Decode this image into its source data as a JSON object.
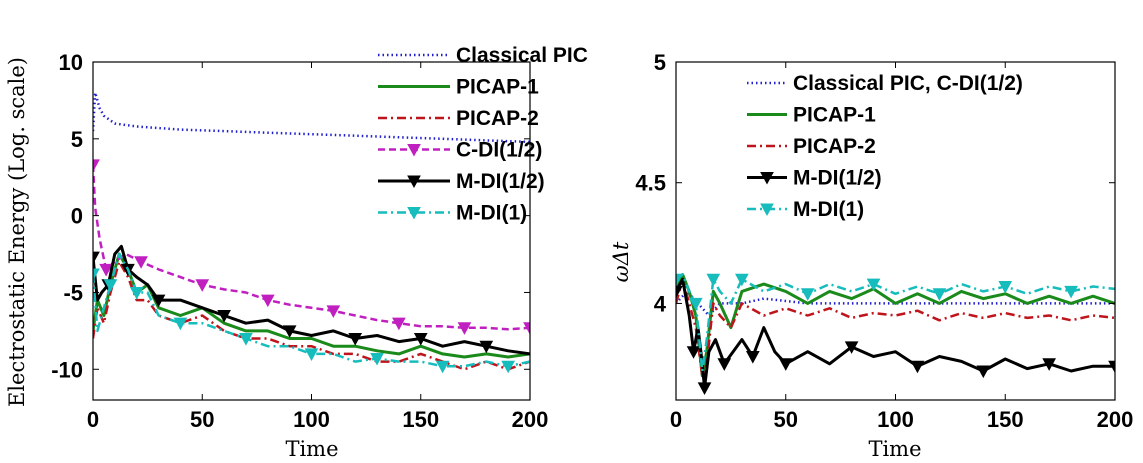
{
  "chart_data": [
    {
      "type": "line",
      "xlabel": "Time",
      "ylabel": "Electrostatic Energy (Log. scale)",
      "xlim": [
        0,
        200
      ],
      "ylim": [
        -12,
        10
      ],
      "xticks": [
        0,
        50,
        100,
        150,
        200
      ],
      "yticks": [
        10,
        5,
        0,
        -5,
        -10
      ],
      "legend_position": "top-right",
      "series": [
        {
          "name": "Classical PIC",
          "color": "#1f1fd0",
          "style": "dotted",
          "marker": "",
          "x": [
            0,
            1,
            3,
            5,
            10,
            20,
            40,
            60,
            80,
            100,
            120,
            140,
            160,
            180,
            200
          ],
          "y": [
            5.5,
            8.0,
            7.0,
            6.5,
            6.0,
            5.8,
            5.6,
            5.5,
            5.4,
            5.3,
            5.2,
            5.1,
            5.0,
            4.9,
            4.8
          ]
        },
        {
          "name": "PICAP-1",
          "color": "#1a8a1a",
          "style": "solid",
          "marker": "",
          "x": [
            0,
            2,
            5,
            8,
            12,
            16,
            20,
            25,
            30,
            40,
            50,
            60,
            70,
            80,
            90,
            100,
            110,
            120,
            130,
            140,
            150,
            160,
            170,
            180,
            190,
            200
          ],
          "y": [
            -7.5,
            -5.5,
            -6.5,
            -4.5,
            -2.5,
            -3.5,
            -5.0,
            -4.5,
            -6.0,
            -6.5,
            -6.0,
            -7.0,
            -7.5,
            -7.5,
            -8.0,
            -8.0,
            -8.5,
            -8.5,
            -8.8,
            -9.0,
            -8.5,
            -9.0,
            -9.2,
            -9.0,
            -9.2,
            -9.0
          ]
        },
        {
          "name": "PICAP-2",
          "color": "#c0141c",
          "style": "dashdot",
          "marker": "",
          "x": [
            0,
            2,
            5,
            8,
            12,
            16,
            20,
            25,
            30,
            40,
            50,
            60,
            70,
            80,
            90,
            100,
            110,
            120,
            130,
            140,
            150,
            160,
            170,
            180,
            190,
            200
          ],
          "y": [
            -8.0,
            -6.0,
            -7.0,
            -5.0,
            -3.0,
            -4.0,
            -5.5,
            -5.5,
            -6.5,
            -7.0,
            -6.5,
            -7.5,
            -8.0,
            -8.0,
            -8.5,
            -8.5,
            -9.0,
            -9.0,
            -9.5,
            -9.5,
            -9.0,
            -9.5,
            -10.0,
            -9.5,
            -10.0,
            -9.5
          ]
        },
        {
          "name": "C-DI(1/2)",
          "color": "#c020c0",
          "style": "dashed",
          "marker": "triangle-down",
          "x": [
            0,
            1,
            3,
            6,
            10,
            15,
            22,
            30,
            40,
            50,
            60,
            70,
            80,
            90,
            100,
            110,
            120,
            130,
            140,
            150,
            160,
            170,
            180,
            190,
            200
          ],
          "y": [
            3.3,
            0.5,
            -1.5,
            -3.5,
            -3.0,
            -2.5,
            -3.0,
            -3.5,
            -4.0,
            -4.5,
            -4.8,
            -5.0,
            -5.5,
            -5.8,
            -6.0,
            -6.2,
            -6.5,
            -6.8,
            -7.0,
            -7.2,
            -7.2,
            -7.3,
            -7.3,
            -7.4,
            -7.3
          ]
        },
        {
          "name": "M-DI(1/2)",
          "color": "#000000",
          "style": "solid",
          "marker": "triangle-down",
          "x": [
            0,
            2,
            4,
            7,
            10,
            13,
            16,
            20,
            25,
            30,
            40,
            50,
            60,
            70,
            80,
            90,
            100,
            110,
            120,
            130,
            140,
            150,
            160,
            170,
            180,
            190,
            200
          ],
          "y": [
            -2.7,
            -5.5,
            -5.0,
            -4.5,
            -2.5,
            -2.0,
            -3.5,
            -4.0,
            -4.5,
            -5.5,
            -5.5,
            -6.0,
            -6.5,
            -7.0,
            -6.8,
            -7.5,
            -7.8,
            -7.5,
            -8.0,
            -7.8,
            -8.2,
            -8.0,
            -8.5,
            -8.2,
            -8.5,
            -8.8,
            -9.0
          ]
        },
        {
          "name": "M-DI(1)",
          "color": "#17bcbc",
          "style": "dashdot",
          "marker": "triangle-down",
          "x": [
            0,
            2,
            5,
            8,
            12,
            16,
            20,
            25,
            30,
            40,
            50,
            60,
            70,
            80,
            90,
            100,
            110,
            120,
            130,
            140,
            150,
            160,
            170,
            180,
            190,
            200
          ],
          "y": [
            -3.8,
            -7.5,
            -6.0,
            -4.5,
            -2.5,
            -3.5,
            -5.0,
            -5.0,
            -6.5,
            -7.0,
            -7.0,
            -7.5,
            -8.0,
            -8.5,
            -8.5,
            -9.0,
            -9.0,
            -9.5,
            -9.3,
            -9.5,
            -9.5,
            -9.8,
            -9.8,
            -9.5,
            -9.8,
            -9.5
          ]
        }
      ]
    },
    {
      "type": "line",
      "xlabel": "Time",
      "ylabel": "ωΔt",
      "xlim": [
        0,
        200
      ],
      "ylim": [
        3.6,
        5
      ],
      "xticks": [
        0,
        50,
        100,
        150,
        200
      ],
      "yticks": [
        5,
        4.5,
        4
      ],
      "legend_position": "top-right",
      "series": [
        {
          "name": "Classical PIC, C-DI(1/2)",
          "color": "#1f1fd0",
          "style": "dotted",
          "marker": "",
          "x": [
            0,
            5,
            10,
            15,
            20,
            30,
            40,
            60,
            80,
            100,
            120,
            140,
            160,
            180,
            200
          ],
          "y": [
            4.0,
            4.05,
            4.0,
            3.95,
            4.0,
            4.0,
            4.02,
            4.0,
            4.0,
            4.0,
            4.0,
            4.0,
            4.0,
            4.0,
            4.0
          ]
        },
        {
          "name": "PICAP-1",
          "color": "#1a8a1a",
          "style": "solid",
          "marker": "",
          "x": [
            0,
            3,
            6,
            9,
            12,
            14,
            17,
            20,
            25,
            30,
            40,
            50,
            60,
            70,
            80,
            90,
            100,
            110,
            120,
            130,
            140,
            150,
            160,
            170,
            180,
            190,
            200
          ],
          "y": [
            4.05,
            4.12,
            4.05,
            3.95,
            3.7,
            3.8,
            4.05,
            4.0,
            3.9,
            4.05,
            4.08,
            4.05,
            4.0,
            4.05,
            4.02,
            4.06,
            4.0,
            4.04,
            4.0,
            4.05,
            4.02,
            4.04,
            4.0,
            4.03,
            4.0,
            4.03,
            4.0
          ]
        },
        {
          "name": "PICAP-2",
          "color": "#c0141c",
          "style": "dashdot",
          "marker": "",
          "x": [
            0,
            3,
            6,
            9,
            12,
            14,
            17,
            20,
            25,
            30,
            40,
            50,
            60,
            70,
            80,
            90,
            100,
            110,
            120,
            130,
            140,
            150,
            160,
            170,
            180,
            190,
            200
          ],
          "y": [
            4.0,
            4.1,
            4.0,
            3.9,
            3.7,
            3.75,
            4.0,
            3.95,
            3.9,
            4.0,
            3.95,
            3.98,
            3.95,
            3.98,
            3.94,
            3.96,
            3.95,
            3.97,
            3.93,
            3.96,
            3.94,
            3.96,
            3.94,
            3.95,
            3.93,
            3.95,
            3.94
          ]
        },
        {
          "name": "M-DI(1/2)",
          "color": "#000000",
          "style": "solid",
          "marker": "triangle-down",
          "x": [
            0,
            3,
            6,
            8,
            10,
            12,
            13,
            15,
            18,
            22,
            26,
            30,
            35,
            40,
            45,
            50,
            60,
            70,
            80,
            90,
            100,
            110,
            120,
            130,
            140,
            150,
            160,
            170,
            180,
            190,
            200
          ],
          "y": [
            4.05,
            4.1,
            3.95,
            3.8,
            3.9,
            3.75,
            3.65,
            3.8,
            3.85,
            3.75,
            3.8,
            3.85,
            3.78,
            3.9,
            3.8,
            3.75,
            3.8,
            3.75,
            3.82,
            3.78,
            3.8,
            3.74,
            3.78,
            3.76,
            3.72,
            3.77,
            3.73,
            3.75,
            3.72,
            3.74,
            3.74
          ]
        },
        {
          "name": "M-DI(1)",
          "color": "#17bcbc",
          "style": "dashdot",
          "marker": "triangle-down",
          "x": [
            0,
            3,
            6,
            9,
            12,
            14,
            17,
            20,
            25,
            30,
            40,
            50,
            60,
            70,
            80,
            90,
            100,
            110,
            120,
            130,
            140,
            150,
            160,
            170,
            180,
            190,
            200
          ],
          "y": [
            4.1,
            4.12,
            4.05,
            4.0,
            3.72,
            3.85,
            4.1,
            4.05,
            4.0,
            4.1,
            4.05,
            4.08,
            4.04,
            4.08,
            4.05,
            4.08,
            4.04,
            4.07,
            4.04,
            4.08,
            4.05,
            4.07,
            4.04,
            4.07,
            4.05,
            4.07,
            4.06
          ]
        }
      ]
    }
  ]
}
